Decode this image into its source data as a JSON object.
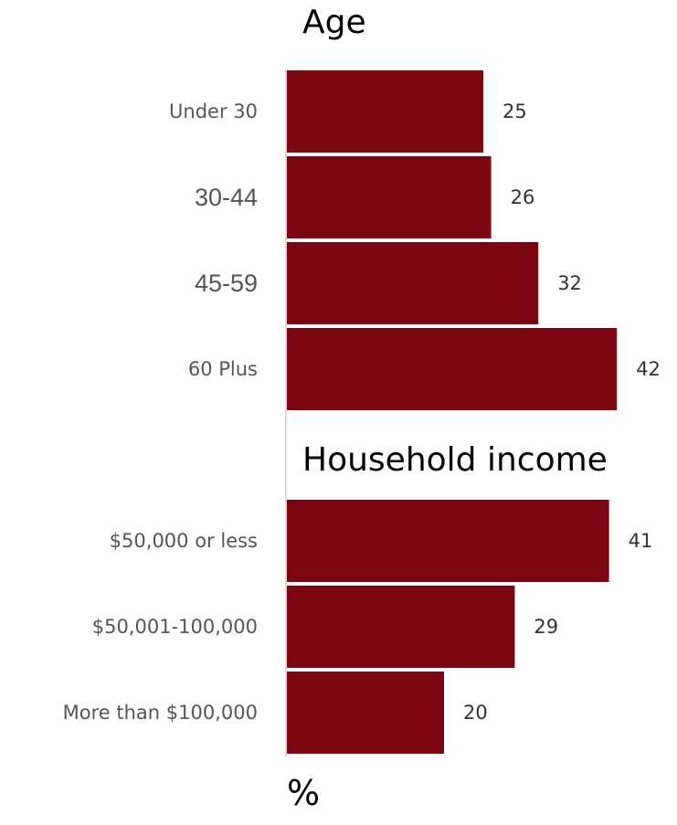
{
  "chart_data": {
    "type": "bar",
    "orientation": "horizontal",
    "unit_label": "%",
    "bar_color": "#7b0510",
    "groups": [
      {
        "title": "Age",
        "categories": [
          "Under 30",
          "30-44",
          "45-59",
          "60 Plus"
        ],
        "values": [
          25,
          26,
          32,
          42
        ]
      },
      {
        "title": "Household income",
        "categories": [
          "$50,000 or less",
          "$50,001-100,000",
          "More than $100,000"
        ],
        "values": [
          41,
          29,
          20
        ]
      }
    ],
    "grid": false,
    "legend": "none"
  }
}
